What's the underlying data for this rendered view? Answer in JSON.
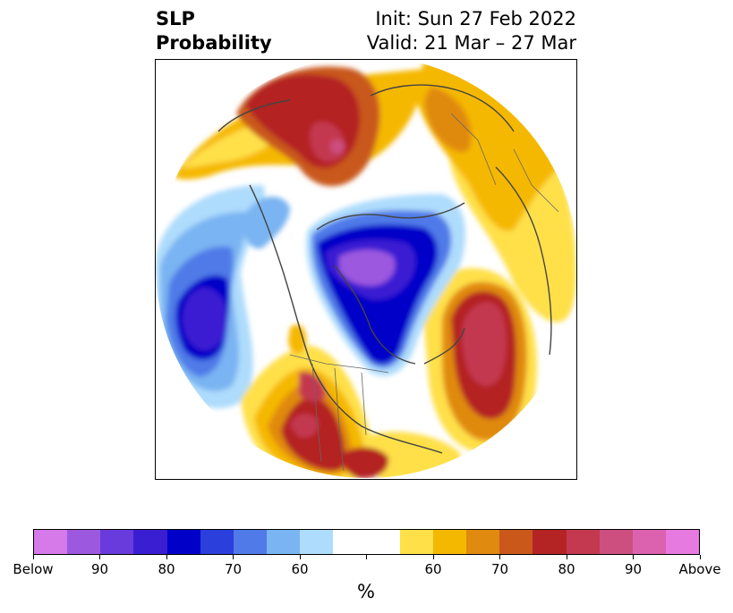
{
  "title": {
    "left_line1": "SLP",
    "left_line2": "Probability",
    "right_line1": "Init: Sun 27 Feb 2022",
    "right_line2": "Valid: 21 Mar – 27 Mar"
  },
  "colorbar": {
    "colors": [
      "#d57ae8",
      "#9d58e0",
      "#6a3bdc",
      "#3a1ed2",
      "#0000c8",
      "#2a3fdc",
      "#4f7ae8",
      "#7ab4f2",
      "#aedcfc",
      "#ffffff",
      "#ffffff",
      "#ffe048",
      "#f5b800",
      "#e08a10",
      "#c9581a",
      "#b42424",
      "#c43850",
      "#cc4f7f",
      "#dc62b0",
      "#e67ae0"
    ],
    "tick_labels": [
      "Below",
      "90",
      "80",
      "70",
      "60",
      "",
      "60",
      "70",
      "80",
      "90",
      "Above"
    ],
    "unit_label": "%"
  }
}
